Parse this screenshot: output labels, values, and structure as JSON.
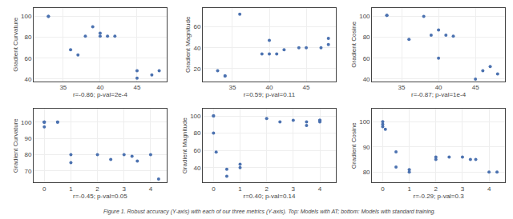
{
  "chart_data": [
    {
      "type": "scatter",
      "x": [
        33,
        33,
        36,
        37,
        38,
        39,
        40,
        40,
        41,
        42,
        45,
        45,
        47,
        48
      ],
      "values": [
        100,
        100,
        68,
        63,
        81,
        90,
        81,
        84,
        81,
        81,
        41,
        48,
        44,
        48
      ],
      "xlabel": "r=-0.86; p-val=2e-4",
      "ylabel": "Gradient Curvature",
      "xlim": [
        31,
        49
      ],
      "xticks": [
        35,
        40,
        45
      ],
      "ylim": [
        38,
        108
      ],
      "yticks": [
        40,
        60,
        80,
        100
      ],
      "grid": true,
      "color": "#4C72B0"
    },
    {
      "type": "scatter",
      "x": [
        33,
        34,
        34,
        36,
        39,
        40,
        40,
        41,
        42,
        44,
        45,
        47,
        48,
        48
      ],
      "values": [
        18,
        13,
        13,
        72,
        34,
        34,
        47,
        34,
        38,
        40,
        40,
        40,
        49,
        43
      ],
      "xlabel": "r=0.59; p-val=0.11",
      "ylabel": "Gradient Magnitude",
      "xlim": [
        31,
        49
      ],
      "xticks": [
        35,
        40,
        45
      ],
      "ylim": [
        8,
        78
      ],
      "yticks": [
        20,
        40,
        60
      ],
      "grid": true,
      "color": "#4C72B0"
    },
    {
      "type": "scatter",
      "x": [
        33,
        33,
        36,
        38,
        39,
        40,
        40,
        41,
        42,
        45,
        46,
        47,
        48
      ],
      "values": [
        101,
        101,
        78,
        100,
        82,
        87,
        60,
        82,
        81,
        40,
        48,
        52,
        45
      ],
      "xlabel": "r=-0.87; p-val=1e-4",
      "ylabel": "Gradient Cosine",
      "xlim": [
        31,
        49
      ],
      "xticks": [
        35,
        40,
        45
      ],
      "ylim": [
        38,
        108
      ],
      "yticks": [
        40,
        60,
        80,
        100
      ],
      "grid": true,
      "color": "#4C72B0"
    },
    {
      "type": "scatter",
      "x": [
        0,
        0,
        0,
        0,
        0.5,
        0.5,
        1,
        1,
        2,
        2.5,
        3,
        3.3,
        3.5,
        4,
        4.3
      ],
      "values": [
        97,
        100,
        100,
        100,
        100,
        100,
        80,
        75,
        80,
        77,
        80,
        79,
        76,
        80,
        65
      ],
      "xlabel": "r=-0.45; p-val=0.05",
      "ylabel": "Gradient Curvature",
      "xlim": [
        -0.4,
        4.6
      ],
      "xticks": [
        0,
        1,
        2,
        3,
        4
      ],
      "ylim": [
        63,
        108
      ],
      "yticks": [
        70,
        80,
        90,
        100
      ],
      "grid": true,
      "color": "#4C72B0"
    },
    {
      "type": "scatter",
      "x": [
        0,
        0,
        0,
        0.1,
        0.5,
        0.5,
        1,
        1,
        2,
        2.5,
        3,
        3.5,
        3.5,
        4,
        4,
        4
      ],
      "values": [
        100,
        100,
        80,
        58,
        38,
        30,
        40,
        44,
        97,
        93,
        95,
        93,
        89,
        93,
        95,
        95
      ],
      "xlabel": "r=0.40; p-val=0.14",
      "ylabel": "Gradient Magnitude",
      "xlim": [
        -0.4,
        4.6
      ],
      "xticks": [
        0,
        1,
        2,
        3,
        4
      ],
      "ylim": [
        23,
        108
      ],
      "yticks": [
        40,
        60,
        80,
        100
      ],
      "grid": true,
      "color": "#4C72B0"
    },
    {
      "type": "scatter",
      "x": [
        0,
        0,
        0,
        0.1,
        0.5,
        0.5,
        1,
        1,
        2,
        2,
        2.5,
        3,
        3.3,
        3.5,
        4,
        4.3
      ],
      "values": [
        99,
        100,
        98,
        97,
        88,
        82,
        81,
        80,
        85,
        86,
        86,
        86,
        85,
        85,
        80,
        80
      ],
      "xlabel": "r=-0.29; p-val=0.3",
      "ylabel": "Gradient Cosine",
      "xlim": [
        -0.4,
        4.6
      ],
      "xticks": [
        0,
        1,
        2,
        3,
        4
      ],
      "ylim": [
        76,
        105
      ],
      "yticks": [
        80,
        90,
        100
      ],
      "grid": true,
      "color": "#4C72B0"
    }
  ],
  "caption": "Figure 1. Robust accuracy (Y-axis) with each of our three metrics (Y-axis). Top: Models with AT; bottom: Models with standard training."
}
